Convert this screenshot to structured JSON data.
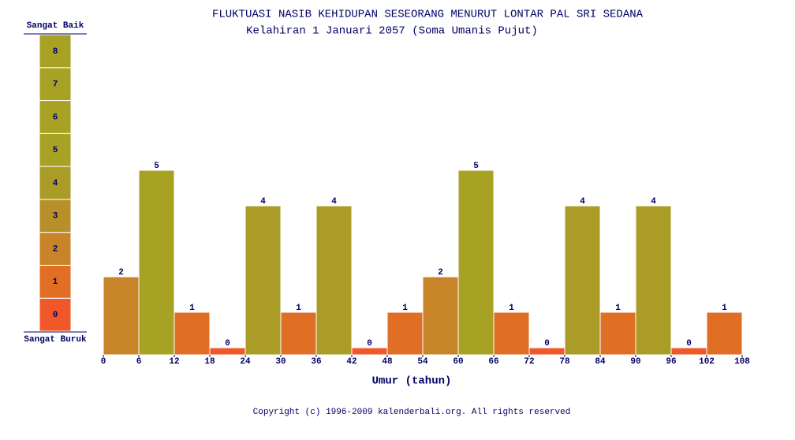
{
  "chart_data": {
    "type": "histogram",
    "title": "FLUKTUASI NASIB KEHIDUPAN SESEORANG MENURUT LONTAR PAL SRI SEDANA",
    "subtitle": "Kelahiran 1 Januari 2057 (Soma Umanis Pujut)",
    "x_label": "Umur (tahun)",
    "bins": [
      0,
      6,
      12,
      18,
      24,
      30,
      36,
      42,
      48,
      54,
      60,
      66,
      72,
      78,
      84,
      90,
      96,
      102,
      108
    ],
    "values": [
      2,
      5,
      1,
      0,
      4,
      1,
      4,
      0,
      1,
      2,
      5,
      1,
      0,
      4,
      1,
      4,
      0,
      1
    ],
    "xlim": [
      0,
      108
    ],
    "xticks": [
      0,
      6,
      12,
      18,
      24,
      30,
      36,
      42,
      48,
      54,
      60,
      66,
      72,
      78,
      84,
      90,
      96,
      102,
      108
    ],
    "ylim": [
      -0.2,
      5
    ],
    "scale_top_label": "Sangat Baik",
    "scale_bottom_label": "Sangat Buruk",
    "scale_levels": [
      0,
      1,
      2,
      3,
      4,
      5,
      6,
      7,
      8
    ],
    "scale_colors": [
      "#f0582a",
      "#e06e24",
      "#c88428",
      "#b8902a",
      "#aa9c26",
      "#a8a224",
      "#a8a224",
      "#a8a224",
      "#a8a224"
    ]
  },
  "footer": "Copyright (c) 1996-2009 kalenderbali.org. All rights reserved"
}
